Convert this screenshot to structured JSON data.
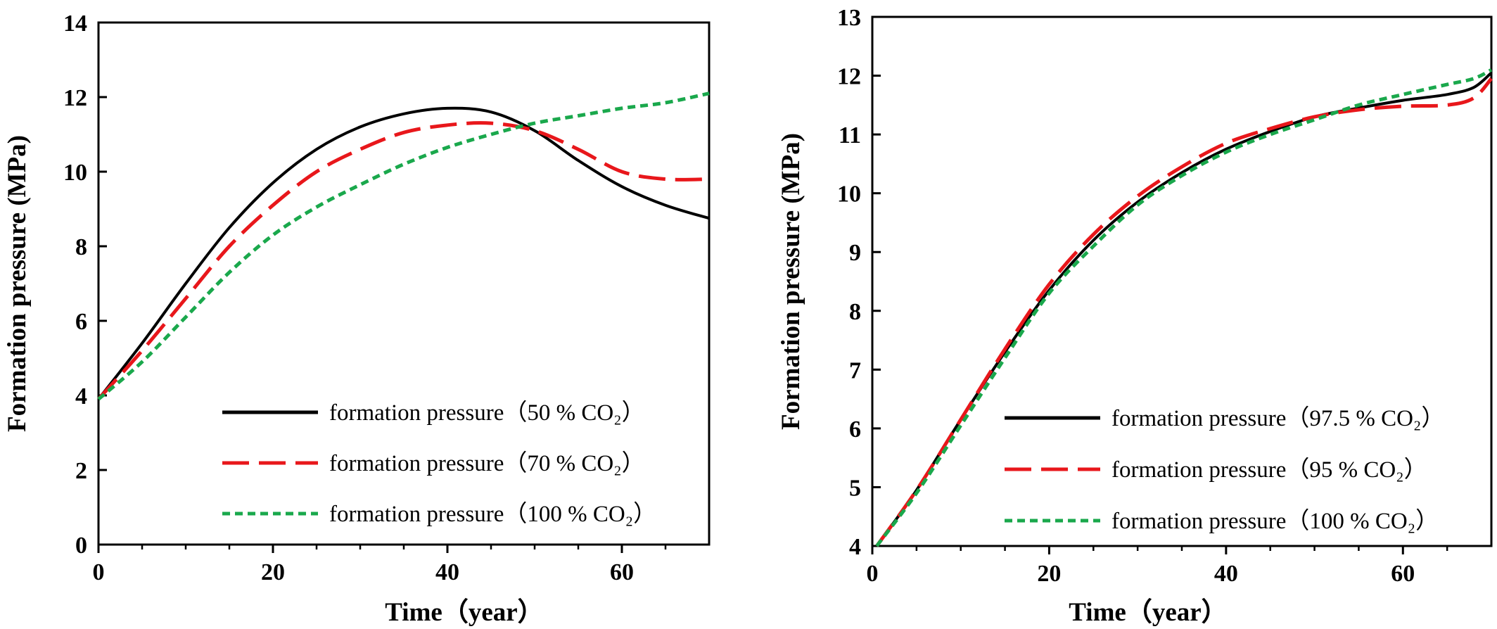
{
  "chart_data": [
    {
      "type": "line",
      "xlabel": "Time（year）",
      "ylabel": "Formation pressure (MPa)",
      "xlim": [
        0,
        70
      ],
      "ylim": [
        0,
        14
      ],
      "xticks": [
        0,
        20,
        40,
        60
      ],
      "xticks_minor": [
        5,
        10,
        15,
        25,
        30,
        35,
        45,
        50,
        55,
        65
      ],
      "yticks": [
        0,
        2,
        4,
        6,
        8,
        10,
        12,
        14
      ],
      "grid": false,
      "legend_position": "bottom-right",
      "series": [
        {
          "name": "formation pressure（50 % CO₂）",
          "color": "#000000",
          "style": "solid",
          "x": [
            0,
            5,
            10,
            15,
            20,
            25,
            30,
            35,
            40,
            45,
            50,
            55,
            60,
            65,
            70
          ],
          "y": [
            3.9,
            5.4,
            7.0,
            8.5,
            9.7,
            10.6,
            11.2,
            11.55,
            11.7,
            11.6,
            11.1,
            10.3,
            9.6,
            9.1,
            8.75
          ]
        },
        {
          "name": "formation pressure（70 % CO₂）",
          "color": "#e8171b",
          "style": "dashed",
          "x": [
            0,
            5,
            10,
            15,
            20,
            25,
            30,
            35,
            40,
            45,
            50,
            55,
            60,
            65,
            70
          ],
          "y": [
            3.9,
            5.2,
            6.6,
            8.0,
            9.1,
            10.0,
            10.6,
            11.05,
            11.25,
            11.3,
            11.1,
            10.6,
            10.0,
            9.8,
            9.8
          ]
        },
        {
          "name": "formation pressure（100 % CO₂）",
          "color": "#1aa84c",
          "style": "dotted",
          "x": [
            0,
            5,
            10,
            15,
            20,
            25,
            30,
            35,
            40,
            45,
            50,
            55,
            60,
            65,
            70
          ],
          "y": [
            3.9,
            4.9,
            6.1,
            7.3,
            8.3,
            9.05,
            9.65,
            10.2,
            10.65,
            11.0,
            11.3,
            11.5,
            11.7,
            11.85,
            12.1
          ]
        }
      ]
    },
    {
      "type": "line",
      "xlabel": "Time（year）",
      "ylabel": "Formation pressure (MPa)",
      "xlim": [
        0,
        70
      ],
      "ylim": [
        4,
        13
      ],
      "xticks": [
        0,
        20,
        40,
        60
      ],
      "xticks_minor": [
        5,
        10,
        15,
        25,
        30,
        35,
        45,
        50,
        55,
        65
      ],
      "yticks": [
        4,
        5,
        6,
        7,
        8,
        9,
        10,
        11,
        12,
        13
      ],
      "grid": false,
      "legend_position": "bottom-right",
      "series": [
        {
          "name": "formation pressure（97.5 % CO₂）",
          "color": "#000000",
          "style": "solid",
          "x": [
            0.5,
            5,
            10,
            15,
            20,
            25,
            30,
            35,
            40,
            45,
            50,
            55,
            60,
            65,
            68,
            70
          ],
          "y": [
            4.0,
            4.95,
            6.15,
            7.3,
            8.35,
            9.2,
            9.85,
            10.35,
            10.75,
            11.05,
            11.3,
            11.45,
            11.58,
            11.68,
            11.8,
            12.05
          ]
        },
        {
          "name": "formation pressure（95 % CO₂）",
          "color": "#e8171b",
          "style": "dashed",
          "x": [
            0.5,
            5,
            10,
            15,
            20,
            25,
            30,
            35,
            40,
            45,
            50,
            55,
            60,
            65,
            68,
            70
          ],
          "y": [
            4.0,
            4.95,
            6.15,
            7.35,
            8.45,
            9.3,
            9.95,
            10.45,
            10.85,
            11.1,
            11.3,
            11.42,
            11.48,
            11.5,
            11.62,
            11.95
          ]
        },
        {
          "name": "formation pressure（100 % CO₂）",
          "color": "#1aa84c",
          "style": "dotted",
          "x": [
            0.5,
            5,
            10,
            15,
            20,
            25,
            30,
            35,
            40,
            45,
            50,
            55,
            60,
            65,
            68,
            70
          ],
          "y": [
            4.0,
            4.9,
            6.05,
            7.2,
            8.3,
            9.1,
            9.8,
            10.3,
            10.7,
            11.0,
            11.25,
            11.5,
            11.68,
            11.85,
            11.95,
            12.1
          ]
        }
      ]
    }
  ]
}
